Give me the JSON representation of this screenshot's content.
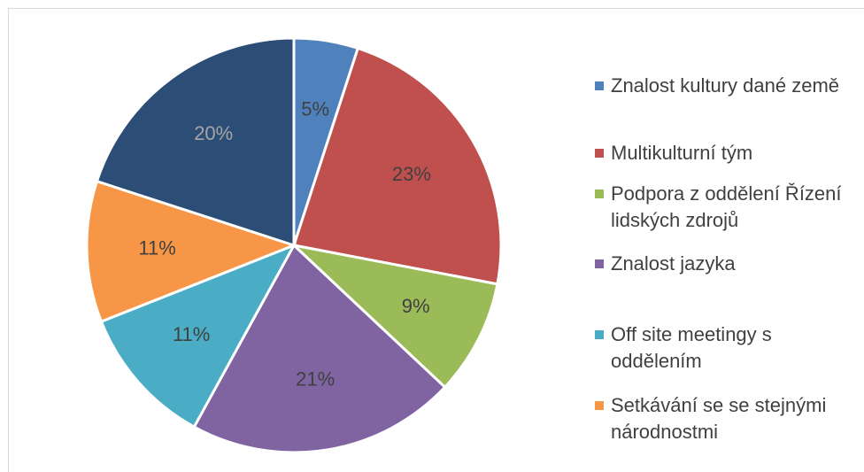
{
  "chart_data": {
    "type": "pie",
    "categories": [
      "Znalost kultury dané země",
      "Multikulturní tým",
      "Podpora z oddělení Řízení lidských zdrojů",
      "Znalost jazyka",
      "Off site meetingy s oddělením",
      "Setkávání se se stejnými národnostmi",
      null
    ],
    "values": [
      5,
      23,
      9,
      21,
      11,
      11,
      20
    ],
    "value_labels": [
      "5%",
      "23%",
      "9%",
      "21%",
      "11%",
      "11%",
      "20%"
    ],
    "colors": [
      "#4f81bd",
      "#c0504d",
      "#9bbb59",
      "#8064a2",
      "#4bacc6",
      "#f79646",
      "#2c4d75"
    ],
    "legend": "right"
  }
}
